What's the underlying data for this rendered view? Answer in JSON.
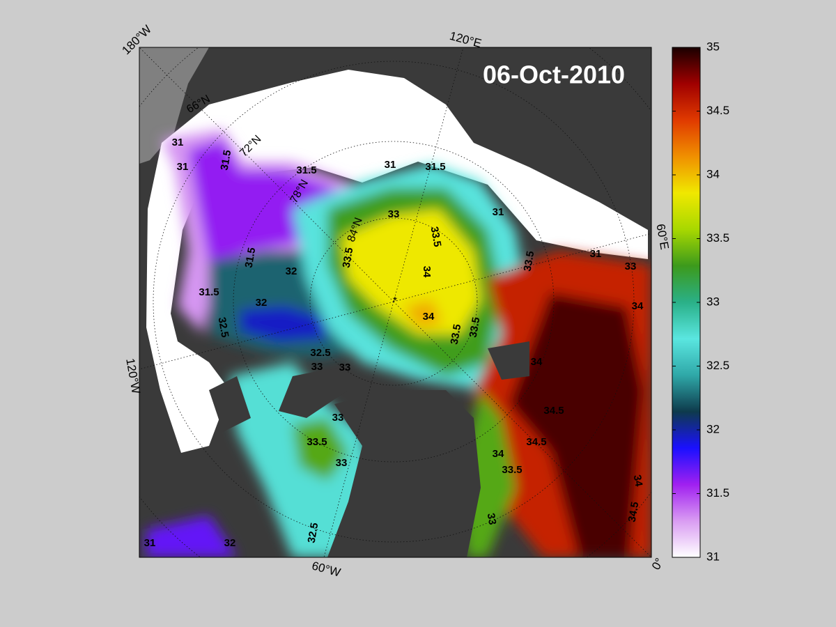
{
  "chart_data": {
    "type": "map",
    "title": "06-Oct-2010",
    "longitude_labels": [
      "180°W",
      "120°E",
      "60°E",
      "0°",
      "60°W",
      "120°W"
    ],
    "latitude_labels": [
      "66°N",
      "72°N",
      "78°N",
      "84°N"
    ],
    "colorbar": {
      "ylim": [
        31,
        35
      ],
      "yticks": [
        31,
        31.5,
        32,
        32.5,
        33,
        33.5,
        34,
        34.5,
        35
      ],
      "colormap": [
        "#ffffff",
        "#d99cf2",
        "#a020f0",
        "#1a10ff",
        "#0e3a4c",
        "#2fa8a8",
        "#5ae6e0",
        "#2ab088",
        "#3c9a1c",
        "#a8d800",
        "#f0e800",
        "#f09000",
        "#e03a00",
        "#a00000",
        "#1a0000"
      ]
    },
    "field_values": [
      31.3,
      31.6,
      32.25,
      31.95,
      32.7,
      33.3,
      33.85,
      34.05,
      34.55,
      34.9,
      32.75,
      33.35,
      31.7
    ],
    "contour_labels": [
      31,
      31,
      31.5,
      31.5,
      31,
      31.5,
      33,
      33.5,
      34,
      34,
      33.5,
      33.5,
      32,
      32,
      31.5,
      31.5,
      32.5,
      33,
      33,
      33.5,
      31,
      33.5,
      31,
      33,
      34,
      34,
      34.5,
      34.5,
      34,
      33.5,
      33.5,
      33,
      33,
      32.5,
      32,
      31,
      34,
      34.5,
      33,
      32.5
    ]
  }
}
